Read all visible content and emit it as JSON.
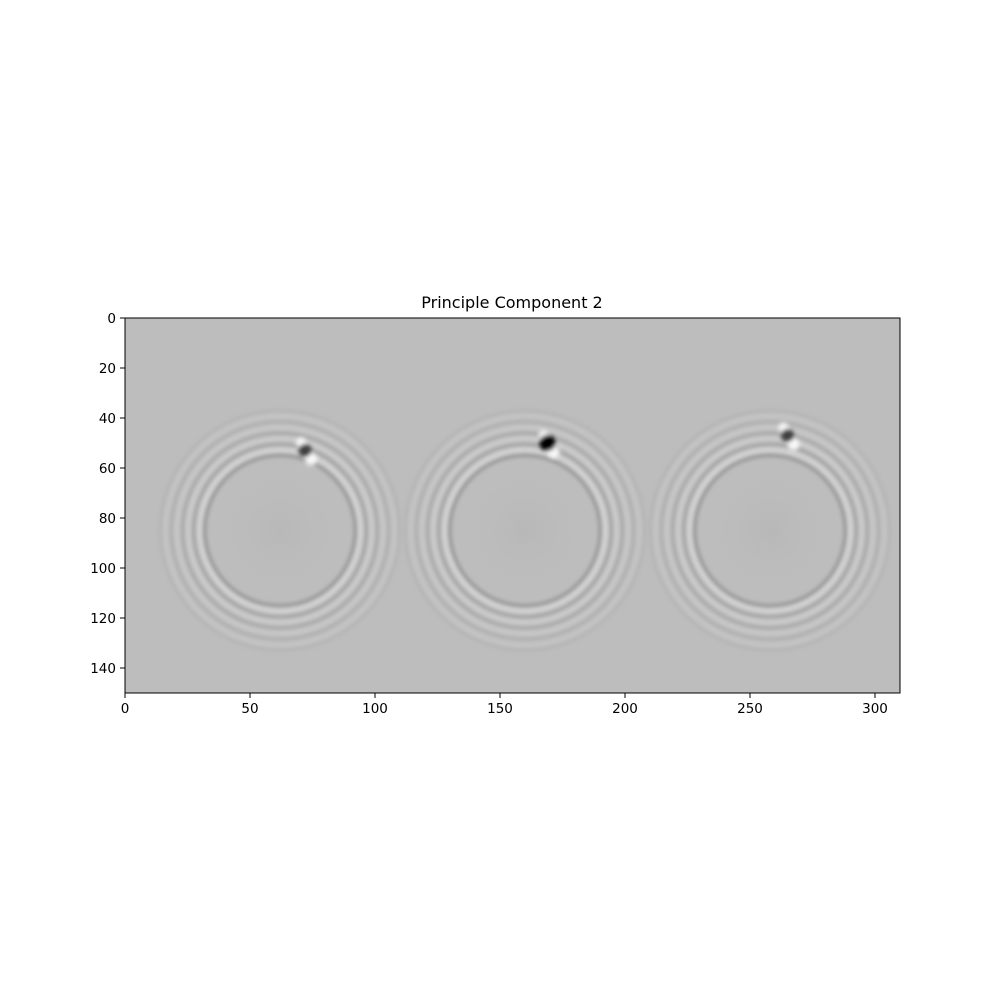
{
  "chart_data": {
    "type": "heatmap",
    "title": "Principle Component 2",
    "xlabel": "",
    "ylabel": "",
    "colormap": "gray",
    "background_color": "#bdbdbd",
    "image_shape": [
      150,
      310
    ],
    "xlim": [
      0,
      310
    ],
    "ylim": [
      150,
      0
    ],
    "x_ticks": [
      0,
      50,
      100,
      150,
      200,
      250,
      300
    ],
    "y_ticks": [
      0,
      20,
      40,
      60,
      80,
      100,
      120,
      140
    ],
    "x_tick_labels": [
      "0",
      "50",
      "100",
      "150",
      "200",
      "250",
      "300"
    ],
    "y_tick_labels": [
      "0",
      "20",
      "40",
      "60",
      "80",
      "100",
      "120",
      "140"
    ],
    "ring_patterns": [
      {
        "center_x": 62,
        "center_y": 85,
        "inner_radius": 30,
        "outer_radius": 48
      },
      {
        "center_x": 160,
        "center_y": 85,
        "inner_radius": 30,
        "outer_radius": 48
      },
      {
        "center_x": 258,
        "center_y": 85,
        "inner_radius": 30,
        "outer_radius": 48
      }
    ],
    "spots": [
      {
        "x": 72,
        "y": 53,
        "intensity": "dark"
      },
      {
        "x": 169,
        "y": 50,
        "intensity": "darkest"
      },
      {
        "x": 265,
        "y": 47,
        "intensity": "dark"
      }
    ]
  }
}
